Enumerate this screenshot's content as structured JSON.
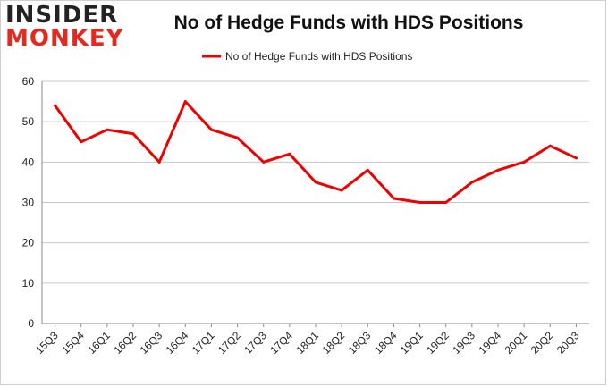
{
  "logo": {
    "line1": "INSIDER",
    "line2": "MONKEY"
  },
  "chart_data": {
    "type": "line",
    "title": "No of Hedge Funds with HDS Positions",
    "categories": [
      "15Q3",
      "15Q4",
      "16Q1",
      "16Q2",
      "16Q3",
      "16Q4",
      "17Q1",
      "17Q2",
      "17Q3",
      "17Q4",
      "18Q1",
      "18Q2",
      "18Q3",
      "18Q4",
      "19Q1",
      "19Q2",
      "19Q3",
      "19Q4",
      "20Q1",
      "20Q2",
      "20Q3"
    ],
    "series": [
      {
        "name": "No of Hedge Funds with HDS Positions",
        "values": [
          54,
          45,
          48,
          47,
          40,
          55,
          48,
          46,
          40,
          42,
          35,
          33,
          38,
          31,
          30,
          30,
          35,
          38,
          40,
          44,
          41
        ]
      }
    ],
    "yticks": [
      0,
      10,
      20,
      30,
      40,
      50,
      60
    ],
    "ylim": [
      0,
      60
    ],
    "grid": true,
    "legend_position": "top-center",
    "line_color": "#ee0000"
  }
}
